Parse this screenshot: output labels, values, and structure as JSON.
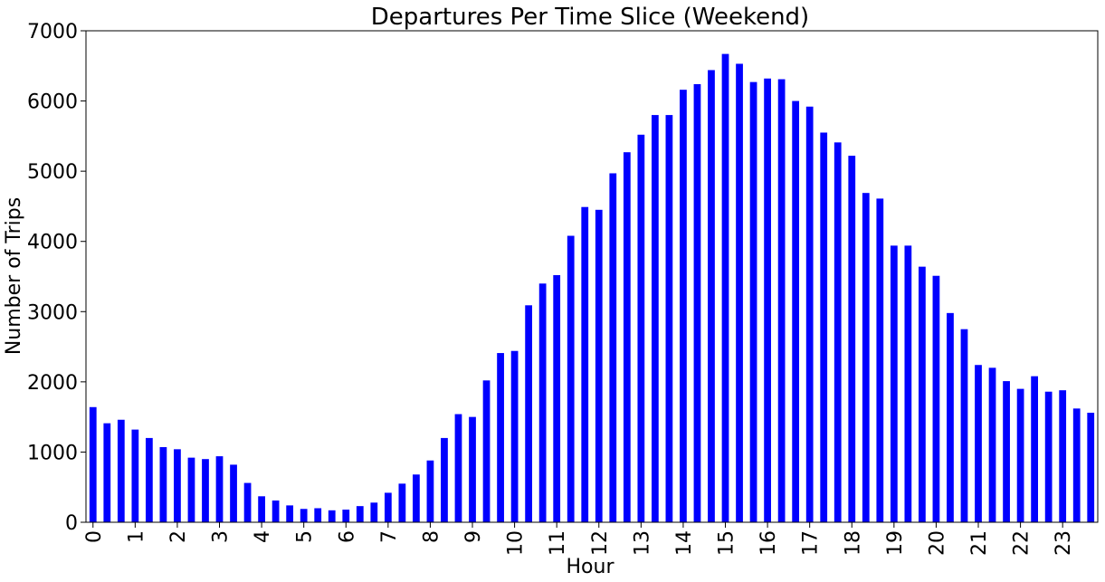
{
  "chart_data": {
    "type": "bar",
    "title": "Departures Per Time Slice (Weekend)",
    "xlabel": "Hour",
    "ylabel": "Number of Trips",
    "ylim": [
      0,
      7000
    ],
    "yticks": [
      0,
      1000,
      2000,
      3000,
      4000,
      5000,
      6000,
      7000
    ],
    "xtick_labels": [
      "0",
      "1",
      "2",
      "3",
      "4",
      "5",
      "6",
      "7",
      "8",
      "9",
      "10",
      "11",
      "12",
      "13",
      "14",
      "15",
      "16",
      "17",
      "18",
      "19",
      "20",
      "21",
      "22",
      "23"
    ],
    "slices_per_hour": 3,
    "bar_color": "#0000ff",
    "grid": false,
    "legend": "none",
    "values": [
      1640,
      1410,
      1460,
      1320,
      1200,
      1070,
      1040,
      920,
      900,
      940,
      820,
      560,
      370,
      310,
      240,
      190,
      200,
      170,
      180,
      230,
      280,
      420,
      550,
      680,
      880,
      1200,
      1540,
      1500,
      2020,
      2410,
      2440,
      3090,
      3400,
      3520,
      4080,
      4490,
      4450,
      4970,
      5270,
      5520,
      5800,
      5800,
      6160,
      6240,
      6440,
      6670,
      6530,
      6270,
      6320,
      6310,
      6000,
      5920,
      5550,
      5410,
      5220,
      4690,
      4610,
      3940,
      3940,
      3640,
      3510,
      2980,
      2750,
      2240,
      2200,
      2010,
      1900,
      2080,
      1860,
      1880,
      1620,
      1560
    ]
  }
}
